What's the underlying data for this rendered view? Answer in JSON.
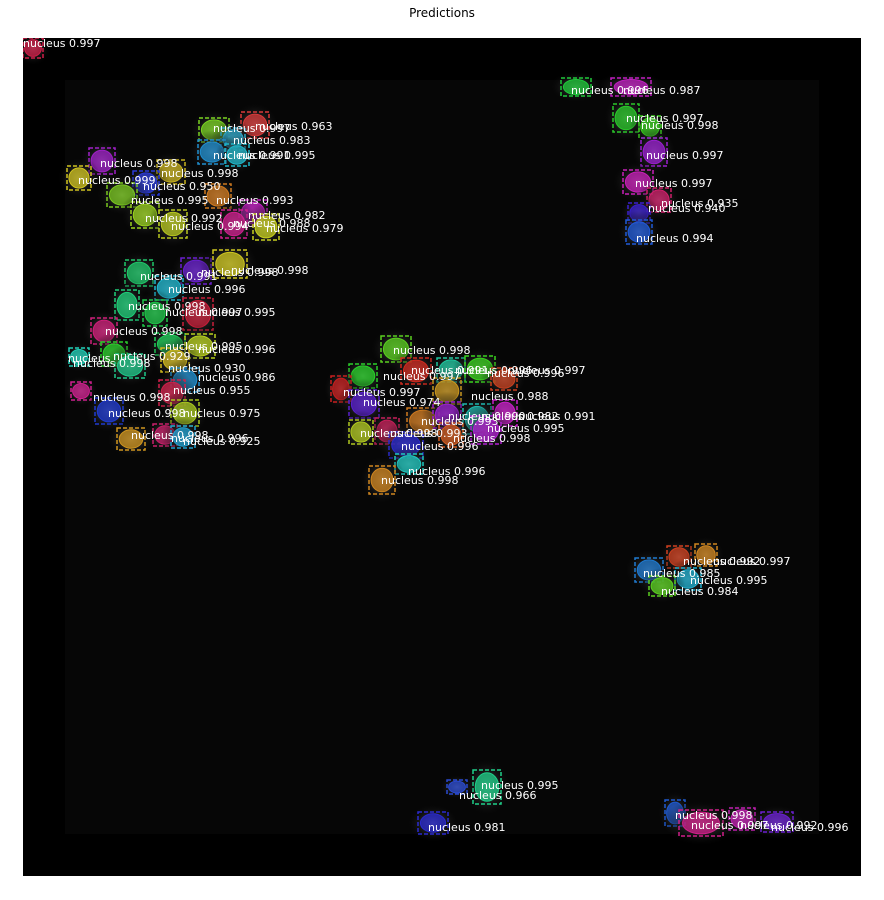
{
  "figure": {
    "title": "Predictions"
  },
  "image": {
    "description_colors": {
      "background": "#000000",
      "tissue": "#050505"
    }
  },
  "detections": [
    {
      "label": "nucleus 0.963",
      "color": "#d83a3a"
    },
    {
      "label": "nucleus 0.997",
      "color": "#7ad321"
    },
    {
      "label": "nucleus 0.983",
      "color": "#2aa6c8"
    },
    {
      "label": "nucleus 0.991",
      "color": "#1f8fd0"
    },
    {
      "label": "nucleus 0.995",
      "color": "#1fb7c9"
    },
    {
      "label": "nucleus 0.998",
      "color": "#a020c8"
    },
    {
      "label": "nucleus 0.998",
      "color": "#c8b21f"
    },
    {
      "label": "nucleus 0.999",
      "color": "#d0c31f"
    },
    {
      "label": "nucleus 0.950",
      "color": "#2a3ad8"
    },
    {
      "label": "nucleus 0.995",
      "color": "#7ac81f"
    },
    {
      "label": "nucleus 0.993",
      "color": "#d07a1f"
    },
    {
      "label": "nucleus 0.992",
      "color": "#9ad21f"
    },
    {
      "label": "nucleus 0.982",
      "color": "#c81fc8"
    },
    {
      "label": "nucleus 0.994",
      "color": "#b8c81f"
    },
    {
      "label": "nucleus 0.988",
      "color": "#d01f8f"
    },
    {
      "label": "nucleus 0.979",
      "color": "#c8d01f"
    },
    {
      "label": "nucleus 0.996",
      "color": "#1fc83a"
    },
    {
      "label": "nucleus 0.987",
      "color": "#c01fc0"
    },
    {
      "label": "nucleus 0.997",
      "color": "#2ac82a"
    },
    {
      "label": "nucleus 0.998",
      "color": "#3ad21f"
    },
    {
      "label": "nucleus 0.997",
      "color": "#9a1fd0"
    },
    {
      "label": "nucleus 0.997",
      "color": "#c81fb8"
    },
    {
      "label": "nucleus 0.935",
      "color": "#d01f6a"
    },
    {
      "label": "nucleus 0.940",
      "color": "#3a1fd0"
    },
    {
      "label": "nucleus 0.994",
      "color": "#1f5ad8"
    },
    {
      "label": "nucleus 0.998",
      "color": "#6a1fd0"
    },
    {
      "label": "nucleus 0.991",
      "color": "#1fc86a"
    },
    {
      "label": "nucleus 0.998",
      "color": "#d0c81f"
    },
    {
      "label": "nucleus 0.996",
      "color": "#1fb8d0"
    },
    {
      "label": "nucleus 0.998",
      "color": "#1fd07a"
    },
    {
      "label": "nucleus 0.997",
      "color": "#1fc84a"
    },
    {
      "label": "nucleus 0.995",
      "color": "#c81f3a"
    },
    {
      "label": "nucleus 0.998",
      "color": "#d01f7a"
    },
    {
      "label": "nucleus 0.995",
      "color": "#1fd05a"
    },
    {
      "label": "nucleus 0.996",
      "color": "#b8d01f"
    },
    {
      "label": "nucleus 0.929",
      "color": "#1fd0b8"
    },
    {
      "label": "nucleus 0.998",
      "color": "#2ad02a"
    },
    {
      "label": "nucleus",
      "color": "#1fc88a"
    },
    {
      "label": "nucleus 0.930",
      "color": "#d0b81f"
    },
    {
      "label": "nucleus 0.986",
      "color": "#1f8fd0"
    },
    {
      "label": "nucleus 0.955",
      "color": "#d01f4a"
    },
    {
      "label": "nucleus 0.998",
      "color": "#d01f8f"
    },
    {
      "label": "nucleus 0.998",
      "color": "#1f3ad0"
    },
    {
      "label": "nucleus 0.975",
      "color": "#a8c81f"
    },
    {
      "label": "nucleus 0.998",
      "color": "#d0961f"
    },
    {
      "label": "nucleus 0.996",
      "color": "#c81f6a"
    },
    {
      "label": "nucleus 0.925",
      "color": "#1fa0d0"
    },
    {
      "label": "nucleus 0.998",
      "color": "#5ad01f"
    },
    {
      "label": "nucleus 0.997",
      "color": "#2ad02a"
    },
    {
      "label": "nucleus 0.997",
      "color": "#c81f1f"
    },
    {
      "label": "nucleus 0.991",
      "color": "#d02a1f"
    },
    {
      "label": "nucleus 0.996",
      "color": "#1fc8a0"
    },
    {
      "label": "nucleus 0.996",
      "color": "#3ad21f"
    },
    {
      "label": "nucleus 0.997",
      "color": "#c8401f"
    },
    {
      "label": "nucleus 0.974",
      "color": "#5a1fd0"
    },
    {
      "label": "nucleus 0.993",
      "color": "#d07a1f"
    },
    {
      "label": "nucleus 0.988",
      "color": "#c8961f"
    },
    {
      "label": "nucleus 0.990",
      "color": "#9a1fd0"
    },
    {
      "label": "nucleus 0.982",
      "color": "#1fb8b0"
    },
    {
      "label": "nucleus 0.991",
      "color": "#c81fc8"
    },
    {
      "label": "nucleus 0.995",
      "color": "#b01fd0"
    },
    {
      "label": "nucleus 0.993",
      "color": "#c81f5a"
    },
    {
      "label": "nucleus 0.998",
      "color": "#b0c81f"
    },
    {
      "label": "nucleus 0.998",
      "color": "#d05a1f"
    },
    {
      "label": "nucleus 0.996",
      "color": "#2a2ad0"
    },
    {
      "label": "nucleus 0.996",
      "color": "#1fc8c0"
    },
    {
      "label": "nucleus 0.998",
      "color": "#d0861f"
    },
    {
      "label": "nucleus 0.992",
      "color": "#d0401f"
    },
    {
      "label": "nucleus 0.997",
      "color": "#d0861f"
    },
    {
      "label": "nucleus 0.985",
      "color": "#1f7ad0"
    },
    {
      "label": "nucleus 0.995",
      "color": "#1fb0d0"
    },
    {
      "label": "nucleus 0.984",
      "color": "#5ad01f"
    },
    {
      "label": "nucleus 0.995",
      "color": "#1fd08a"
    },
    {
      "label": "nucleus 0.966",
      "color": "#2a4ad0"
    },
    {
      "label": "nucleus 0.981",
      "color": "#2a2ad0"
    },
    {
      "label": "nucleus 0.998",
      "color": "#1f5ad0"
    },
    {
      "label": "nucleus 0.997",
      "color": "#d01f8a"
    },
    {
      "label": "nucleus 0.992",
      "color": "#c01fb0"
    },
    {
      "label": "nucleus 0.996",
      "color": "#6a1fd0"
    },
    {
      "label": "nucleus 0.997",
      "color": "#d01f4a"
    }
  ]
}
